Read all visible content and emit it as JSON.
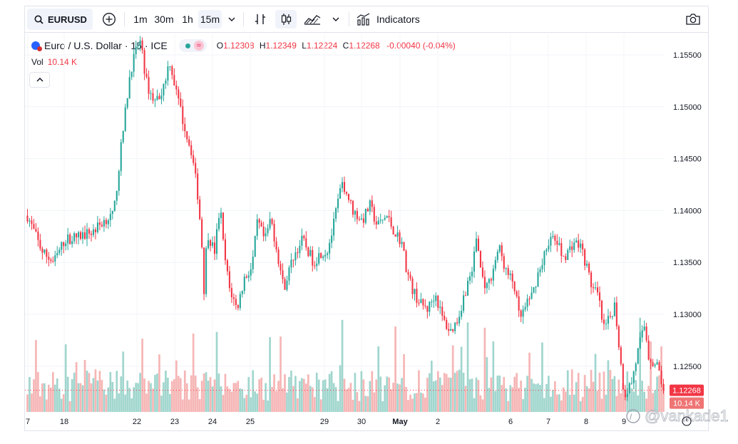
{
  "toolbar": {
    "symbol": "EURUSD",
    "timeframes": [
      "1m",
      "30m",
      "1h",
      "15m"
    ],
    "active_timeframe": "15m",
    "indicators_label": "Indicators"
  },
  "legend": {
    "title": "Euro / U.S. Dollar · 15 · ICE",
    "open_label": "O",
    "open": "1.12308",
    "high_label": "H",
    "high": "1.12349",
    "low_label": "L",
    "low": "1.12224",
    "close_label": "C",
    "close": "1.12268",
    "change": "-0.00040 (-0.04%)",
    "vol_label": "Vol",
    "vol_value": "10.14 K"
  },
  "watermark": "@vankade1",
  "colors": {
    "up": "#26a69a",
    "down": "#f23645",
    "up_vol": "#8fcfc6",
    "down_vol": "#f5a8a8",
    "accent": "#2962ff"
  },
  "chart_data": {
    "type": "candlestick",
    "symbol": "EURUSD",
    "interval": "15",
    "exchange": "ICE",
    "y_ticks": [
      "1.15500",
      "1.15000",
      "1.14500",
      "1.14000",
      "1.13500",
      "1.13000",
      "1.12500"
    ],
    "ylim": [
      1.1215,
      1.1585
    ],
    "x_ticks": [
      "7",
      "18",
      "22",
      "23",
      "24",
      "25",
      "29",
      "30",
      "May",
      "2",
      "6",
      "7",
      "8",
      "9"
    ],
    "last_price": "1.12268",
    "last_volume": "10.14 K",
    "series": [
      {
        "name": "Price",
        "anchors": [
          [
            0,
            1.1395
          ],
          [
            0.8,
            1.136
          ],
          [
            1.4,
            1.135
          ],
          [
            2.0,
            1.1372
          ],
          [
            2.8,
            1.1375
          ],
          [
            3.5,
            1.138
          ],
          [
            4.2,
            1.1392
          ],
          [
            4.6,
            1.1395
          ],
          [
            5.0,
            1.146
          ],
          [
            5.5,
            1.1535
          ],
          [
            6.0,
            1.1565
          ],
          [
            6.4,
            1.152
          ],
          [
            6.8,
            1.1505
          ],
          [
            7.2,
            1.1515
          ],
          [
            7.6,
            1.1545
          ],
          [
            8.0,
            1.151
          ],
          [
            8.4,
            1.148
          ],
          [
            8.8,
            1.1455
          ],
          [
            9.1,
            1.1415
          ],
          [
            9.3,
            1.1375
          ],
          [
            9.45,
            1.132
          ],
          [
            9.6,
            1.138
          ],
          [
            10.0,
            1.136
          ],
          [
            10.3,
            1.1405
          ],
          [
            10.5,
            1.136
          ],
          [
            10.8,
            1.1325
          ],
          [
            11.2,
            1.1305
          ],
          [
            11.6,
            1.1335
          ],
          [
            12.0,
            1.1345
          ],
          [
            12.3,
            1.139
          ],
          [
            12.7,
            1.137
          ],
          [
            13.0,
            1.1393
          ],
          [
            13.3,
            1.1365
          ],
          [
            13.7,
            1.1325
          ],
          [
            14.2,
            1.1355
          ],
          [
            14.7,
            1.1372
          ],
          [
            15.3,
            1.135
          ],
          [
            15.7,
            1.136
          ],
          [
            16.0,
            1.136
          ],
          [
            16.3,
            1.138
          ],
          [
            16.7,
            1.1418
          ],
          [
            16.9,
            1.1425
          ],
          [
            17.4,
            1.14
          ],
          [
            17.9,
            1.139
          ],
          [
            18.3,
            1.1405
          ],
          [
            18.7,
            1.1385
          ],
          [
            19.2,
            1.1395
          ],
          [
            19.6,
            1.138
          ],
          [
            20.0,
            1.137
          ],
          [
            20.3,
            1.134
          ],
          [
            20.6,
            1.1323
          ],
          [
            21.0,
            1.131
          ],
          [
            21.4,
            1.1305
          ],
          [
            21.8,
            1.132
          ],
          [
            22.2,
            1.1295
          ],
          [
            22.6,
            1.1283
          ],
          [
            23.0,
            1.1295
          ],
          [
            23.4,
            1.1322
          ],
          [
            23.8,
            1.1345
          ],
          [
            24.0,
            1.1375
          ],
          [
            24.3,
            1.1335
          ],
          [
            24.6,
            1.1325
          ],
          [
            24.9,
            1.1345
          ],
          [
            25.2,
            1.1365
          ],
          [
            25.6,
            1.134
          ],
          [
            26.0,
            1.133
          ],
          [
            26.3,
            1.1295
          ],
          [
            26.6,
            1.1305
          ],
          [
            27.0,
            1.132
          ],
          [
            27.3,
            1.134
          ],
          [
            27.6,
            1.1355
          ],
          [
            27.9,
            1.1373
          ],
          [
            28.3,
            1.137
          ],
          [
            28.6,
            1.1355
          ],
          [
            28.9,
            1.136
          ],
          [
            29.2,
            1.137
          ],
          [
            29.6,
            1.1365
          ],
          [
            29.9,
            1.1345
          ],
          [
            30.2,
            1.1325
          ],
          [
            30.5,
            1.1318
          ],
          [
            30.8,
            1.1285
          ],
          [
            31.1,
            1.1295
          ],
          [
            31.4,
            1.131
          ],
          [
            31.7,
            1.1255
          ],
          [
            31.9,
            1.1222
          ],
          [
            32.3,
            1.1235
          ],
          [
            32.7,
            1.127
          ],
          [
            33.0,
            1.129
          ],
          [
            33.2,
            1.126
          ],
          [
            33.5,
            1.1252
          ],
          [
            33.7,
            1.125
          ],
          [
            34.0,
            1.1227
          ]
        ]
      },
      {
        "name": "Volume",
        "description": "volume bars, values in K",
        "range_k": [
          0,
          60
        ]
      }
    ]
  }
}
